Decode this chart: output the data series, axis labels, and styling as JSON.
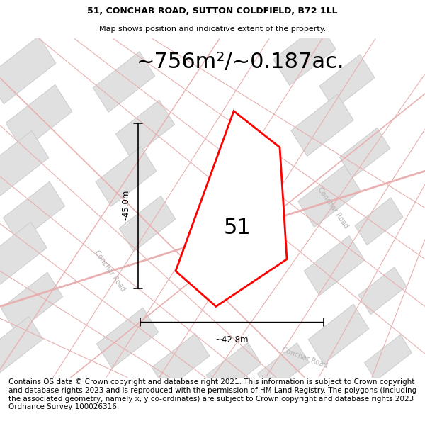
{
  "title_line1": "51, CONCHAR ROAD, SUTTON COLDFIELD, B72 1LL",
  "title_line2": "Map shows position and indicative extent of the property.",
  "area_text": "~756m²/~0.187ac.",
  "property_number": "51",
  "dim_height": "~45.0m",
  "dim_width": "~42.8m",
  "road_label_left": "Conchar Road",
  "road_label_right": "Conchar Road",
  "road_label_bottom": "Conchar Road",
  "footer_text": "Contains OS data © Crown copyright and database right 2021. This information is subject to Crown copyright and database rights 2023 and is reproduced with the permission of HM Land Registry. The polygons (including the associated geometry, namely x, y co-ordinates) are subject to Crown copyright and database rights 2023 Ordnance Survey 100026316.",
  "bg_color": "#f2f2f2",
  "block_color": "#e0e0e0",
  "block_edge_color": "#c8c8c8",
  "road_line_color": "#e8b0b0",
  "property_fill": "white",
  "property_edge": "red",
  "title_fontsize": 9,
  "subtitle_fontsize": 8,
  "area_fontsize": 22,
  "footer_fontsize": 7.5,
  "road_label_color": "#b0b0b0",
  "road_label_fontsize": 7
}
